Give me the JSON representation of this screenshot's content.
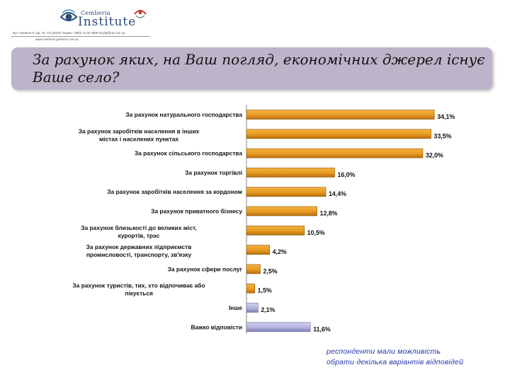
{
  "header": {
    "logo_small": "Cemberia",
    "logo_big": "Institute",
    "address": "вул. Наєвича 9, оф. 19, тел.(00)30 Черрян +38(0) 41 00 3568 tel:gfpi@ua.com.ua",
    "website": "www.cemberia.gerberia.com.ua"
  },
  "title": "За рахунок яких, на Ваш погляд, економічних джерел існує  Ваше село?",
  "footnote": {
    "line1": "респонденти мали можливість",
    "line2": "обрати декілька варіантів відповідей"
  },
  "colors": {
    "bar_orange": "#e69a22",
    "bar_orange_dark": "#b86e0c",
    "bar_lavender": "#b3b3dd",
    "bar_lavender_dark": "#7e7eb2",
    "title_bg": "#bcb4c8"
  },
  "chart_data": {
    "type": "bar",
    "orientation": "horizontal",
    "grid": false,
    "legend": "none",
    "xlim": [
      0,
      36
    ],
    "categories": [
      "За рахунок натурального господарства",
      "За рахунок заробітків населення в інших містах і населених пунктах",
      "За рахунок сільського господарства",
      "За рахунок торгівлі",
      "За рахунок заробітків населення за кордоном",
      "За рахунок приватного бізнесу",
      "За рахунок близькості до великих міст, курортів, трас",
      "За рахунок державних підприємств промисловості, транспорту, зв'язку",
      "За рахунок сфери послуг",
      "За рахунок туристів, тих, хто відпочиває або лікується",
      "Інше",
      "Важко відповісти"
    ],
    "values": [
      34.1,
      33.5,
      32.0,
      16.0,
      14.4,
      12.8,
      10.5,
      4.2,
      2.5,
      1.5,
      2.1,
      11.6
    ],
    "value_labels": [
      "34,1%",
      "33,5%",
      "32,0%",
      "16,0%",
      "14,4%",
      "12,8%",
      "10,5%",
      "4,2%",
      "2,5%",
      "1,5%",
      "2,1%",
      "11,6%"
    ],
    "bar_colors": [
      "orange",
      "orange",
      "orange",
      "orange",
      "orange",
      "orange",
      "orange",
      "orange",
      "orange",
      "orange",
      "lavender",
      "lavender"
    ]
  }
}
